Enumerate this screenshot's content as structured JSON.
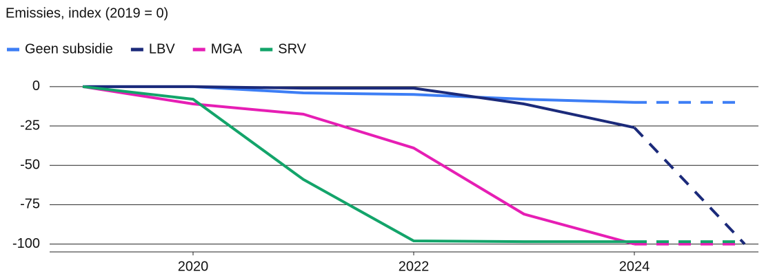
{
  "chart_data": {
    "type": "line",
    "title": "Emissies, index (2019 = 0)",
    "x": [
      2019,
      2020,
      2021,
      2022,
      2023,
      2024,
      2025
    ],
    "series": [
      {
        "name": "Geen subsidie",
        "color": "#3d7ef5",
        "values": [
          0,
          0,
          -4,
          -5,
          -8,
          -10,
          -10
        ]
      },
      {
        "name": "LBV",
        "color": "#1b2a7a",
        "values": [
          0,
          0,
          -1,
          -1,
          -11,
          -26,
          -100
        ]
      },
      {
        "name": "MGA",
        "color": "#e61eb4",
        "values": [
          0,
          -11,
          -17.5,
          -39,
          -81,
          -100,
          -100
        ]
      },
      {
        "name": "SRV",
        "color": "#13a46a",
        "values": [
          0,
          -8,
          -59,
          -98,
          -98.5,
          -98.5,
          -98.5
        ]
      }
    ],
    "dashed_from": 2024,
    "xlim": [
      2018.7,
      2025.125
    ],
    "xticks": [
      2020,
      2022,
      2024
    ],
    "ylim": [
      -105,
      3
    ],
    "yticks": [
      0,
      -25,
      -50,
      -75,
      -100
    ],
    "grid": true
  }
}
